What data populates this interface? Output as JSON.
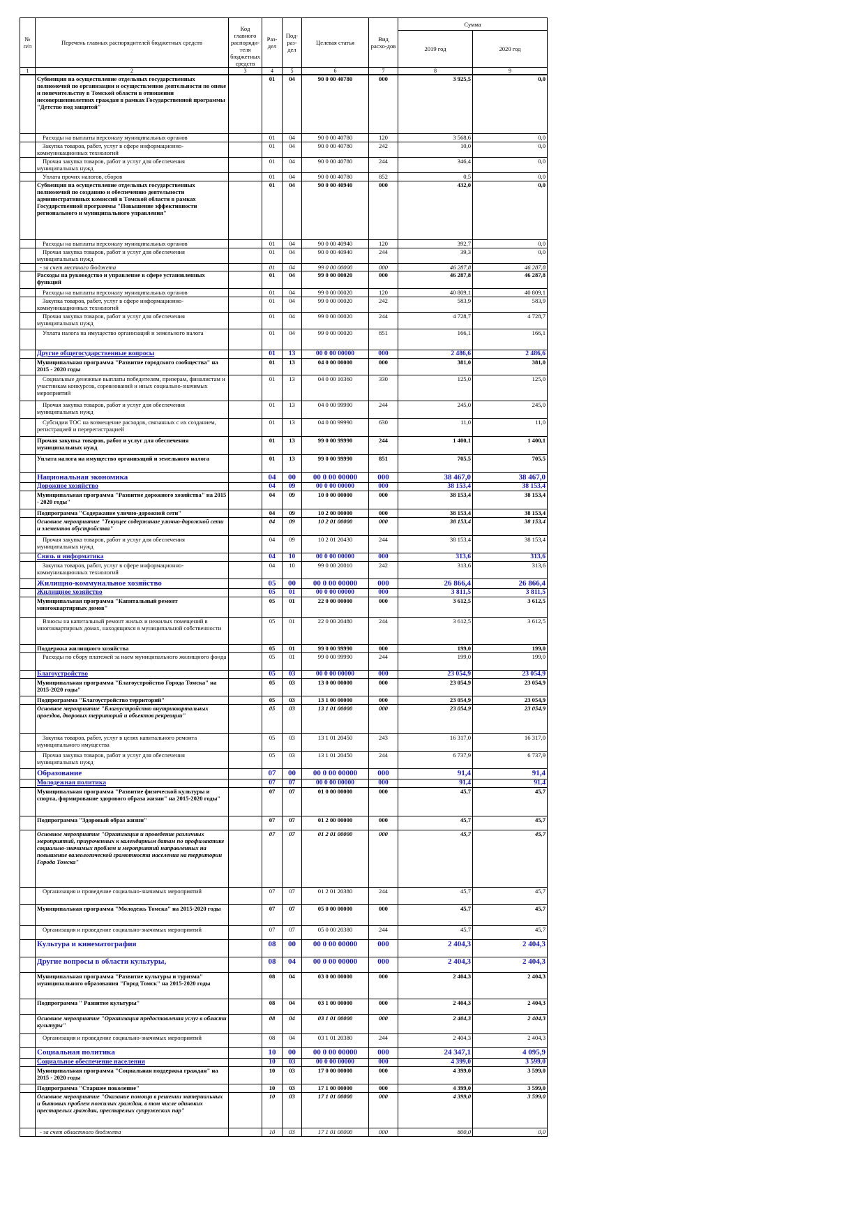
{
  "header": {
    "number": "№ п/п",
    "name": "Перечень главных распорядителей бюджетных средств",
    "code": "Код главного распоряди-теля бюджетных средств",
    "razdel": "Раз-дел",
    "podrazdel": "Под-раз-дел",
    "article": "Целевая статья",
    "type": "Вид расхо-дов",
    "sum": "Сумма",
    "year1": "2019 год",
    "year2": "2020 год",
    "column_numbers": [
      "1",
      "2",
      "3",
      "4",
      "5",
      "6",
      "7",
      "8",
      "9"
    ]
  },
  "table": {
    "styles": [
      "bold",
      "regular",
      "regular",
      "regular",
      "regular",
      "bold",
      "regular",
      "regular",
      "italic",
      "bold",
      "regular",
      "regular",
      "regular",
      "regular",
      "subsection",
      "bold",
      "regular",
      "regular",
      "regular",
      "bold",
      "bold",
      "section",
      "subsection",
      "bold",
      "bold",
      "bold-italic",
      "regular",
      "subsection",
      "regular",
      "section",
      "subsection",
      "bold",
      "regular",
      "bold",
      "regular",
      "subsection",
      "bold",
      "bold",
      "bold-italic",
      "regular",
      "regular",
      "section",
      "subsection",
      "bold",
      "bold",
      "bold-italic",
      "regular",
      "bold",
      "regular",
      "section",
      "section",
      "bold",
      "bold",
      "bold-italic",
      "regular",
      "section",
      "subsection",
      "bold",
      "bold",
      "bold-italic",
      "italic"
    ],
    "rows": [
      [
        "Субвенция на осуществление отдельных государственных полномочий по организации и осуществлению деятельности по опеке и попечительству в Томской области в отношении несовершеннолетних граждан в рамках Государственной программы \"Детство под защитой\"",
        "01",
        "04",
        "90 0 00 40780",
        "000",
        "3 925,5",
        "0,0"
      ],
      [
        "Расходы на выплаты персоналу муниципальных органов",
        "01",
        "04",
        "90 0 00 40780",
        "120",
        "3 568,6",
        "0,0"
      ],
      [
        "Закупка товаров, работ, услуг в сфере информационно-коммуникационных технологий",
        "01",
        "04",
        "90 0 00 40780",
        "242",
        "10,0",
        "0,0"
      ],
      [
        "Прочая закупка товаров, работ и услуг для обеспечения муниципальных нужд",
        "01",
        "04",
        "90 0 00 40780",
        "244",
        "346,4",
        "0,0"
      ],
      [
        "Уплата прочих налогов, сборов",
        "01",
        "04",
        "90 0 00 40780",
        "852",
        "0,5",
        "0,0"
      ],
      [
        "Субвенция на осуществление отдельных государственных полномочий по созданию и обеспечению деятельности административных комиссий в Томской области в рамках Государственной программы \"Повышение эффективности регионального и муниципального управления\"",
        "01",
        "04",
        "90 0 00 40940",
        "000",
        "432,0",
        "0,0"
      ],
      [
        "Расходы на выплаты персоналу муниципальных органов",
        "01",
        "04",
        "90 0 00 40940",
        "120",
        "392,7",
        "0,0"
      ],
      [
        "Прочая закупка товаров, работ и услуг для обеспечения муниципальных нужд",
        "01",
        "04",
        "90 0 00 40940",
        "244",
        "39,3",
        "0,0"
      ],
      [
        "- за счет местного бюджета",
        "01",
        "04",
        "99 0 00 00000",
        "000",
        "46 287,8",
        "46 287,8"
      ],
      [
        "Расходы на руководство и управление в сфере установленных функций",
        "01",
        "04",
        "99 0 00 00020",
        "000",
        "46 287,8",
        "46 287,8"
      ],
      [
        "Расходы на выплаты персоналу муниципальных органов",
        "01",
        "04",
        "99 0 00 00020",
        "120",
        "40 809,1",
        "40 809,1"
      ],
      [
        "Закупка товаров, работ, услуг в сфере информационно-коммуникационных технологий",
        "01",
        "04",
        "99 0 00 00020",
        "242",
        "583,9",
        "583,9"
      ],
      [
        "Прочая закупка товаров, работ и услуг для обеспечения муниципальных нужд",
        "01",
        "04",
        "99 0 00 00020",
        "244",
        "4 728,7",
        "4 728,7"
      ],
      [
        "Уплата налога на имущество организаций и земельного налога",
        "01",
        "04",
        "99 0 00 00020",
        "851",
        "166,1",
        "166,1"
      ],
      [
        "Другие общегосударственные вопросы",
        "01",
        "13",
        "00 0 00 00000",
        "000",
        "2 486,6",
        "2 486,6"
      ],
      [
        "Муниципальная программа \"Развитие городского сообщества\" на 2015 - 2020 годы",
        "01",
        "13",
        "04 0 00 00000",
        "000",
        "381,0",
        "381,0"
      ],
      [
        "Социальные денежные выплаты победителям, призерам, финалистам и участникам конкурсов, соревнований и иных социально-значимых мероприятий",
        "01",
        "13",
        "04 0 00 10360",
        "330",
        "125,0",
        "125,0"
      ],
      [
        "Прочая закупка товаров, работ и услуг для обеспечения муниципальных нужд",
        "01",
        "13",
        "04 0 00 99990",
        "244",
        "245,0",
        "245,0"
      ],
      [
        "Субсидии ТОС на возмещение расходов, связанных с их созданием, регистрацией и перерегистрацией",
        "01",
        "13",
        "04 0 00 99990",
        "630",
        "11,0",
        "11,0"
      ],
      [
        "Прочая закупка товаров, работ и услуг для обеспечения муниципальных нужд",
        "01",
        "13",
        "99 0 00 99990",
        "244",
        "1 400,1",
        "1 400,1"
      ],
      [
        "Уплата налога на имущество организаций и земельного налога",
        "01",
        "13",
        "99 0 00 99990",
        "851",
        "705,5",
        "705,5"
      ],
      [
        "Национальная экономика",
        "04",
        "00",
        "00 0 00 00000",
        "000",
        "38 467,0",
        "38 467,0"
      ],
      [
        "Дорожное хозяйство",
        "04",
        "09",
        "00 0 00 00000",
        "000",
        "38 153,4",
        "38 153,4"
      ],
      [
        "Муниципальная программа \"Развитие дорожного хозяйства\" на 2015 - 2020 годы\"",
        "04",
        "09",
        "10 0 00 00000",
        "000",
        "38 153,4",
        "38 153,4"
      ],
      [
        "Подпрограмма \"Содержание улично-дорожной сети\"",
        "04",
        "09",
        "10 2 00 00000",
        "000",
        "38 153,4",
        "38 153,4"
      ],
      [
        "Основное мероприятие \"Текущее содержание улично-дорожной сети и элементов обустройства\"",
        "04",
        "09",
        "10 2 01 00000",
        "000",
        "38 153,4",
        "38 153,4"
      ],
      [
        "Прочая закупка товаров, работ и услуг для обеспечения муниципальных нужд",
        "04",
        "09",
        "10 2 01 20430",
        "244",
        "38 153,4",
        "38 153,4"
      ],
      [
        "Связь и информатика",
        "04",
        "10",
        "00 0 00 00000",
        "000",
        "313,6",
        "313,6"
      ],
      [
        "Закупка товаров, работ, услуг в сфере информационно-коммуникационных технологий",
        "04",
        "10",
        "99 0 00 20010",
        "242",
        "313,6",
        "313,6"
      ],
      [
        "Жилищно-коммунальное хозяйство",
        "05",
        "00",
        "00 0 00 00000",
        "000",
        "26 866,4",
        "26 866,4"
      ],
      [
        "Жилищное хозяйство",
        "05",
        "01",
        "00 0 00 00000",
        "000",
        "3 811,5",
        "3 811,5"
      ],
      [
        "Муниципальная программа \"Капитальный ремонт многоквартирных домов\"",
        "05",
        "01",
        "22 0 00 00000",
        "000",
        "3 612,5",
        "3 612,5"
      ],
      [
        "Взносы на капитальный ремонт жилых и нежилых помещений в многоквартирных домах, находящихся в муниципальной собственности",
        "05",
        "01",
        "22 0 00 20480",
        "244",
        "3 612,5",
        "3 612,5"
      ],
      [
        "Поддержка жилищного хозяйства",
        "05",
        "01",
        "99 0 00 99990",
        "000",
        "199,0",
        "199,0"
      ],
      [
        "Расходы по сбору платежей за наем муниципального жилищного фонда",
        "05",
        "01",
        "99 0 00 99990",
        "244",
        "199,0",
        "199,0"
      ],
      [
        "Благоустройство",
        "05",
        "03",
        "00 0 00 00000",
        "000",
        "23 054,9",
        "23 054,9"
      ],
      [
        "Муниципальная программа \"Благоустройство Города Томска\" на 2015-2020 годы\"",
        "05",
        "03",
        "13 0 00 00000",
        "000",
        "23 054,9",
        "23 054,9"
      ],
      [
        "Подпрограмма \"Благоустройство территорий\"",
        "05",
        "03",
        "13 1 00 00000",
        "000",
        "23 054,9",
        "23 054,9"
      ],
      [
        "Основное мероприятие \"Благоустройство внутриквартальных проездов, дворовых территорий и объектов рекреации\"",
        "05",
        "03",
        "13 1 01 00000",
        "000",
        "23 054,9",
        "23 054,9"
      ],
      [
        "Закупка товаров, работ, услуг в целях капитального ремонта муниципального имущества",
        "05",
        "03",
        "13 1 01 20450",
        "243",
        "16 317,0",
        "16 317,0"
      ],
      [
        "Прочая закупка товаров, работ и услуг для обеспечения муниципальных нужд",
        "05",
        "03",
        "13 1 01 20450",
        "244",
        "6 737,9",
        "6 737,9"
      ],
      [
        "Образование",
        "07",
        "00",
        "00 0 00 00000",
        "000",
        "91,4",
        "91,4"
      ],
      [
        "Молодежная политика",
        "07",
        "07",
        "00 0 00 00000",
        "000",
        "91,4",
        "91,4"
      ],
      [
        "Муниципальная программа \"Развитие физической культуры и спорта, формирование здорового образа жизни\" на 2015-2020 годы\"",
        "07",
        "07",
        "01 0 00 00000",
        "000",
        "45,7",
        "45,7"
      ],
      [
        "Подпрограмма \"Здоровый образ жизни\"",
        "07",
        "07",
        "01 2 00 00000",
        "000",
        "45,7",
        "45,7"
      ],
      [
        "Основное мероприятие \"Организация и проведение различных мероприятий, приуроченных к календарным датам по профилактике социально-значимых проблем и мероприятий направленных на повышение валеологической грамотности населения на территории Города Томска\"",
        "07",
        "07",
        "01 2 01 00000",
        "000",
        "45,7",
        "45,7"
      ],
      [
        "Организация и проведение социально-значимых мероприятий",
        "07",
        "07",
        "01 2 01 20380",
        "244",
        "45,7",
        "45,7"
      ],
      [
        "Муниципальная программа \"Молодежь Томска\" на 2015-2020 годы",
        "07",
        "07",
        "05 0 00 00000",
        "000",
        "45,7",
        "45,7"
      ],
      [
        "Организация и проведение социально-значимых мероприятий",
        "07",
        "07",
        "05 0 00 20380",
        "244",
        "45,7",
        "45,7"
      ],
      [
        "Культура и кинематография",
        "08",
        "00",
        "00 0 00 00000",
        "000",
        "2 404,3",
        "2 404,3"
      ],
      [
        "Другие вопросы в области культуры,",
        "08",
        "04",
        "00 0 00 00000",
        "000",
        "2 404,3",
        "2 404,3"
      ],
      [
        "Муниципальная программа \"Развитие культуры и туризма\" муниципального образования \"Город Томск\" на 2015-2020 годы",
        "08",
        "04",
        "03 0 00 00000",
        "000",
        "2 404,3",
        "2 404,3"
      ],
      [
        "Подпрограмма \" Развитие культуры\"",
        "08",
        "04",
        "03 1 00 00000",
        "000",
        "2 404,3",
        "2 404,3"
      ],
      [
        "Основное мероприятие \"Организация предоставления услуг в области культуры\"",
        "08",
        "04",
        "03 1 01 00000",
        "000",
        "2 404,3",
        "2 404,3"
      ],
      [
        "Организация и проведение социально-значимых мероприятий",
        "08",
        "04",
        "03 1 01 20380",
        "244",
        "2 404,3",
        "2 404,3"
      ],
      [
        "Социальная политика",
        "10",
        "00",
        "00 0 00 00000",
        "000",
        "24 347,1",
        "4 095,9"
      ],
      [
        "Социальное обеспечение населения",
        "10",
        "03",
        "00 0 00 00000",
        "000",
        "4 399,0",
        "3 599,0"
      ],
      [
        "Муниципальная программа \"Социальная поддержка граждан\" на 2015 - 2020 годы",
        "10",
        "03",
        "17 0 00 00000",
        "000",
        "4 399,0",
        "3 599,0"
      ],
      [
        "Подпрограмма \"Старшее поколение\"",
        "10",
        "03",
        "17 1 00 00000",
        "000",
        "4 399,0",
        "3 599,0"
      ],
      [
        "Основное мероприятие \"Оказание помощи в решении материальных и бытовых проблем пожилых граждан, в том числе одиноких престарелых граждан, престарелых супружеских пар\"",
        "10",
        "03",
        "17 1 01 00000",
        "000",
        "4 399,0",
        "3 599,0"
      ],
      [
        "- за счет областного бюджета",
        "10",
        "03",
        "17 1 01 00000",
        "000",
        "800,0",
        "0,0"
      ]
    ]
  }
}
